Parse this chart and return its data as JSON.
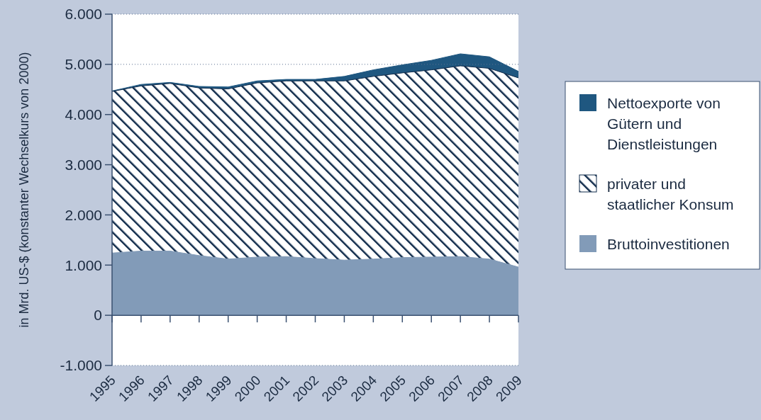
{
  "chart_data": {
    "type": "area",
    "stacked": true,
    "ylabel": "in Mrd. US-$ (konstanter Wechselkurs von 2000)",
    "categories": [
      "1995",
      "1996",
      "1997",
      "1998",
      "1999",
      "2000",
      "2001",
      "2002",
      "2003",
      "2004",
      "2005",
      "2006",
      "2007",
      "2008",
      "2009"
    ],
    "series": [
      {
        "name": "Bruttoinvestitionen",
        "color": "#829bb8",
        "values": [
          1240,
          1280,
          1280,
          1190,
          1120,
          1160,
          1170,
          1130,
          1100,
          1120,
          1150,
          1160,
          1170,
          1120,
          960
        ]
      },
      {
        "name": "privater und staatlicher Konsum",
        "color": "#0f2a4a",
        "values": [
          3220,
          3290,
          3340,
          3340,
          3390,
          3470,
          3500,
          3540,
          3570,
          3640,
          3680,
          3730,
          3800,
          3800,
          3770
        ]
      },
      {
        "name": "Nettoexporte von Gütern und Dienstleistungen",
        "color": "#1f5780",
        "values": [
          10,
          30,
          20,
          30,
          40,
          40,
          30,
          30,
          90,
          130,
          160,
          190,
          240,
          230,
          130
        ]
      }
    ],
    "ylim": [
      -1000,
      6000
    ],
    "yticks": [
      {
        "value": -1000,
        "label": "-1.000"
      },
      {
        "value": 0,
        "label": "0"
      },
      {
        "value": 1000,
        "label": "1.000"
      },
      {
        "value": 2000,
        "label": "2.000"
      },
      {
        "value": 3000,
        "label": "3.000"
      },
      {
        "value": 4000,
        "label": "4.000"
      },
      {
        "value": 5000,
        "label": "5.000"
      },
      {
        "value": 6000,
        "label": "6.000"
      }
    ],
    "legend": "right",
    "ref_lines": [
      {
        "axis": "y",
        "value": 0,
        "color": "#3a5070"
      },
      {
        "axis": "y",
        "value": 5000,
        "color": "#5a7090",
        "line_style": "dotted"
      },
      {
        "axis": "y",
        "value": 6000,
        "color": "#5a7090",
        "line_style": "dotted"
      },
      {
        "axis": "y",
        "value": -1000,
        "color": "#5a7090",
        "line_style": "dotted"
      }
    ]
  }
}
